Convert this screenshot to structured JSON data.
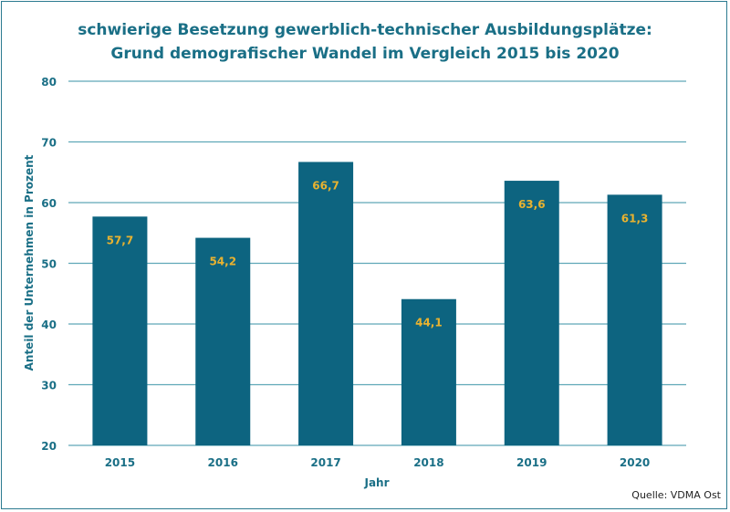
{
  "chart_data": {
    "type": "bar",
    "title_line1": "schwierige Besetzung gewerblich-technischer Ausbildungsplätze:",
    "title_line2": "Grund demografischer Wandel im Vergleich 2015 bis 2020",
    "xlabel": "Jahr",
    "ylabel": "Anteil der Unternehmen in Prozent",
    "categories": [
      "2015",
      "2016",
      "2017",
      "2018",
      "2019",
      "2020"
    ],
    "values": [
      57.7,
      54.2,
      66.7,
      44.1,
      63.6,
      61.3
    ],
    "value_labels": [
      "57,7",
      "54,2",
      "66,7",
      "44,1",
      "63,6",
      "61,3"
    ],
    "ylim": [
      20,
      80
    ],
    "yticks": [
      20,
      30,
      40,
      50,
      60,
      70,
      80
    ],
    "grid": true,
    "source": "Quelle: VDMA Ost",
    "colors": {
      "bar": "#0d6480",
      "value_label": "#e8b230",
      "text": "#1a6f86",
      "grid": "#5fa8b8"
    }
  }
}
